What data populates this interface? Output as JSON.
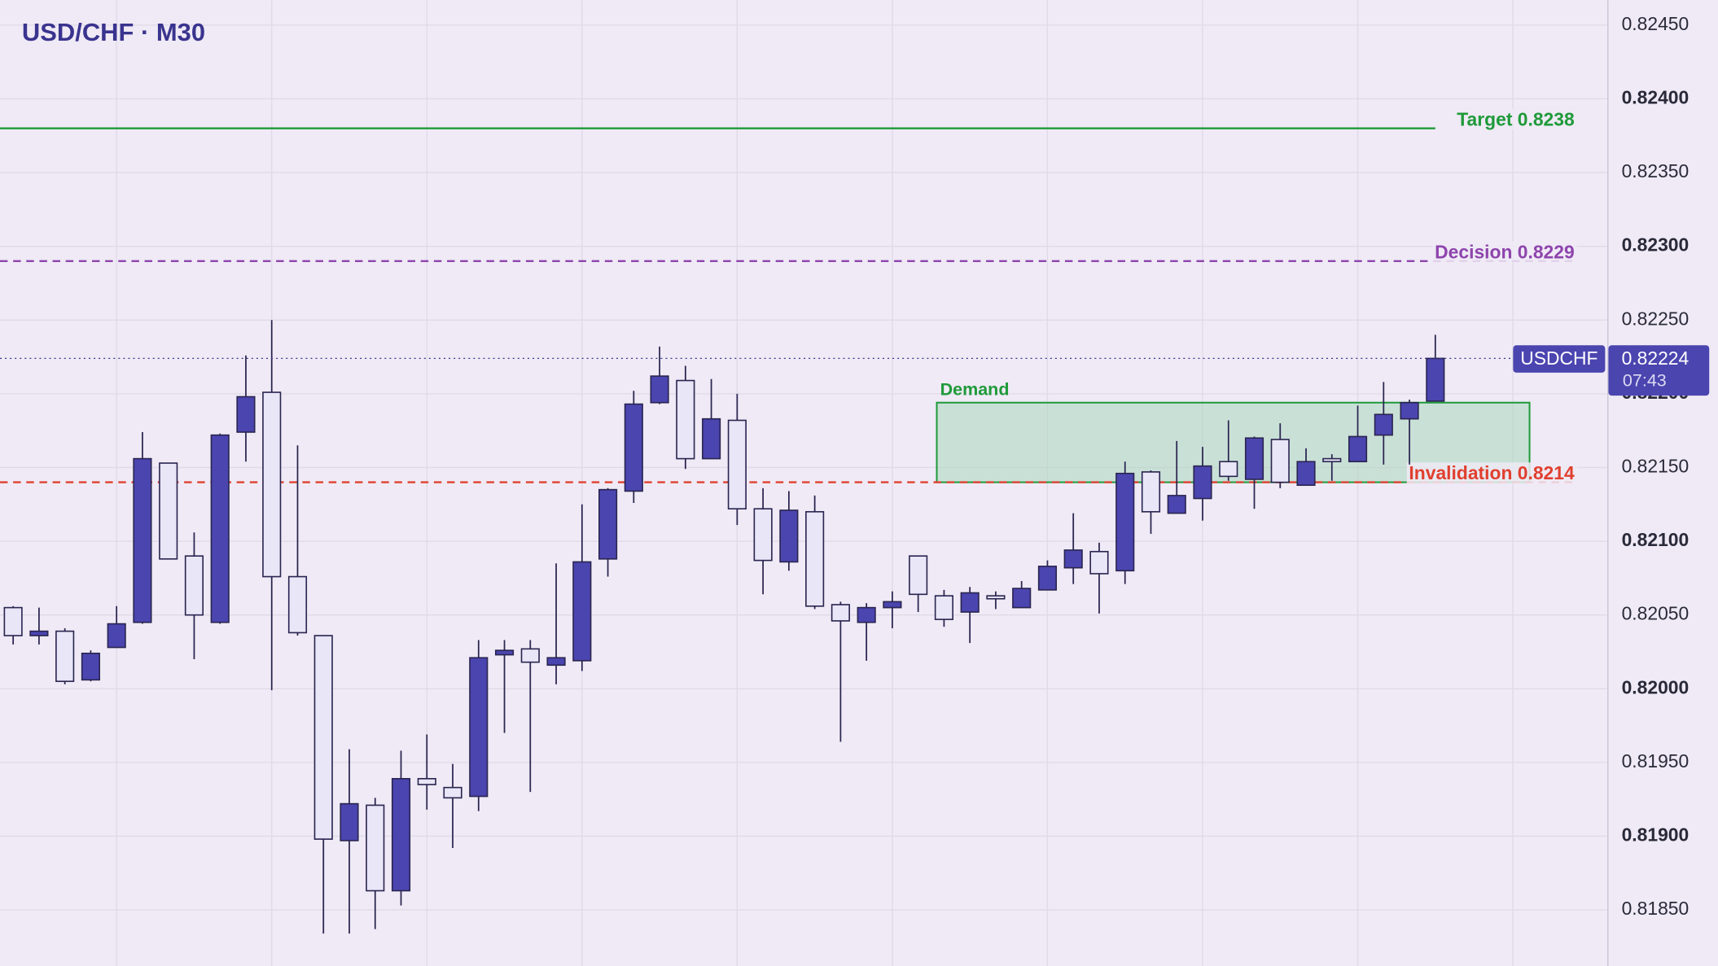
{
  "chart_data": {
    "type": "candlestick",
    "title": "USD/CHF · M30",
    "open": [
      0.82055,
      0.82036,
      0.82039,
      0.82006,
      0.82028,
      0.82045,
      0.82153,
      0.8209,
      0.82045,
      0.82174,
      0.82201,
      0.82076,
      0.82036,
      0.81897,
      0.81921,
      0.81863,
      0.81939,
      0.81933,
      0.81927,
      0.82023,
      0.82027,
      0.82016,
      0.82019,
      0.82088,
      0.82134,
      0.82194,
      0.82209,
      0.82156,
      0.82182,
      0.82122,
      0.82086,
      0.8212,
      0.82057,
      0.82045,
      0.82055,
      0.8209,
      0.82063,
      0.82052,
      0.82063,
      0.82055,
      0.82067,
      0.82082,
      0.82093,
      0.8208,
      0.82147,
      0.82119,
      0.82129,
      0.82154,
      0.82142,
      0.82169,
      0.82138,
      0.82156,
      0.82154,
      0.82172,
      0.82183,
      0.82195
    ],
    "high": [
      0.82056,
      0.82055,
      0.82041,
      0.82026,
      0.82056,
      0.82174,
      0.82153,
      0.82106,
      0.82173,
      0.82226,
      0.8225,
      0.82165,
      0.82036,
      0.81959,
      0.81926,
      0.81958,
      0.81969,
      0.81949,
      0.82033,
      0.82033,
      0.82033,
      0.82085,
      0.82125,
      0.82136,
      0.82202,
      0.82232,
      0.82219,
      0.8221,
      0.822,
      0.82136,
      0.82134,
      0.82131,
      0.82059,
      0.82058,
      0.82066,
      0.8209,
      0.82067,
      0.82069,
      0.82066,
      0.82073,
      0.82087,
      0.82119,
      0.82099,
      0.82154,
      0.82148,
      0.82168,
      0.82164,
      0.82182,
      0.82171,
      0.8218,
      0.82163,
      0.82159,
      0.82192,
      0.82208,
      0.82196,
      0.8224
    ],
    "low": [
      0.8203,
      0.8203,
      0.82003,
      0.82005,
      0.82028,
      0.82044,
      0.82088,
      0.8202,
      0.82044,
      0.82154,
      0.81999,
      0.82036,
      0.81834,
      0.81834,
      0.81837,
      0.81853,
      0.81918,
      0.81892,
      0.81917,
      0.8197,
      0.8193,
      0.82003,
      0.82012,
      0.82076,
      0.82126,
      0.82193,
      0.82149,
      0.82156,
      0.82111,
      0.82064,
      0.8208,
      0.82054,
      0.81964,
      0.82019,
      0.82041,
      0.82052,
      0.82042,
      0.82031,
      0.82054,
      0.82055,
      0.82067,
      0.82071,
      0.82051,
      0.82071,
      0.82105,
      0.82119,
      0.82114,
      0.82141,
      0.82122,
      0.82136,
      0.82138,
      0.82141,
      0.82154,
      0.82152,
      0.82152,
      0.82195
    ],
    "close": [
      0.82036,
      0.82039,
      0.82005,
      0.82024,
      0.82044,
      0.82156,
      0.82088,
      0.8205,
      0.82172,
      0.82198,
      0.82076,
      0.82038,
      0.81898,
      0.81922,
      0.81863,
      0.81939,
      0.81935,
      0.81926,
      0.82021,
      0.82026,
      0.82018,
      0.82021,
      0.82086,
      0.82135,
      0.82193,
      0.82212,
      0.82156,
      0.82183,
      0.82122,
      0.82087,
      0.82121,
      0.82056,
      0.82046,
      0.82055,
      0.82059,
      0.82064,
      0.82047,
      0.82065,
      0.82061,
      0.82068,
      0.82083,
      0.82094,
      0.82078,
      0.82146,
      0.8212,
      0.82131,
      0.82151,
      0.82144,
      0.8217,
      0.8214,
      0.82154,
      0.82154,
      0.82171,
      0.82186,
      0.82194,
      0.82224
    ],
    "up_color": "#4b45b0",
    "down_color": "#e8e6f7",
    "ylim": [
      0.81812,
      0.82467
    ],
    "yticks": [
      {
        "value": 0.8245,
        "label": "0.82450"
      },
      {
        "value": 0.824,
        "label": "0.82400"
      },
      {
        "value": 0.8235,
        "label": "0.82350"
      },
      {
        "value": 0.823,
        "label": "0.82300"
      },
      {
        "value": 0.8225,
        "label": "0.82250"
      },
      {
        "value": 0.822,
        "label": "0.82200"
      },
      {
        "value": 0.8215,
        "label": "0.82150"
      },
      {
        "value": 0.821,
        "label": "0.82100"
      },
      {
        "value": 0.8205,
        "label": "0.82050"
      },
      {
        "value": 0.82,
        "label": "0.82000"
      },
      {
        "value": 0.8195,
        "label": "0.81950"
      },
      {
        "value": 0.819,
        "label": "0.81900"
      },
      {
        "value": 0.8185,
        "label": "0.81850"
      }
    ],
    "grid": true,
    "levels": [
      {
        "label": "Target 0.8238",
        "value": 0.8238,
        "color": "#1f9a3a",
        "style": "solid"
      },
      {
        "label": "Decision 0.8229",
        "value": 0.8229,
        "color": "#8e44ad",
        "style": "dashed"
      },
      {
        "label": "Invalidation 0.8214",
        "value": 0.8214,
        "color": "#e0402f",
        "style": "dashed"
      }
    ],
    "zone": {
      "label": "Demand",
      "top": 0.82194,
      "bottom": 0.8214,
      "color": "#1f9a3a"
    },
    "current": {
      "symbol": "USDCHF",
      "value": 0.82224,
      "label": "0.82224",
      "countdown": "07:43"
    }
  }
}
